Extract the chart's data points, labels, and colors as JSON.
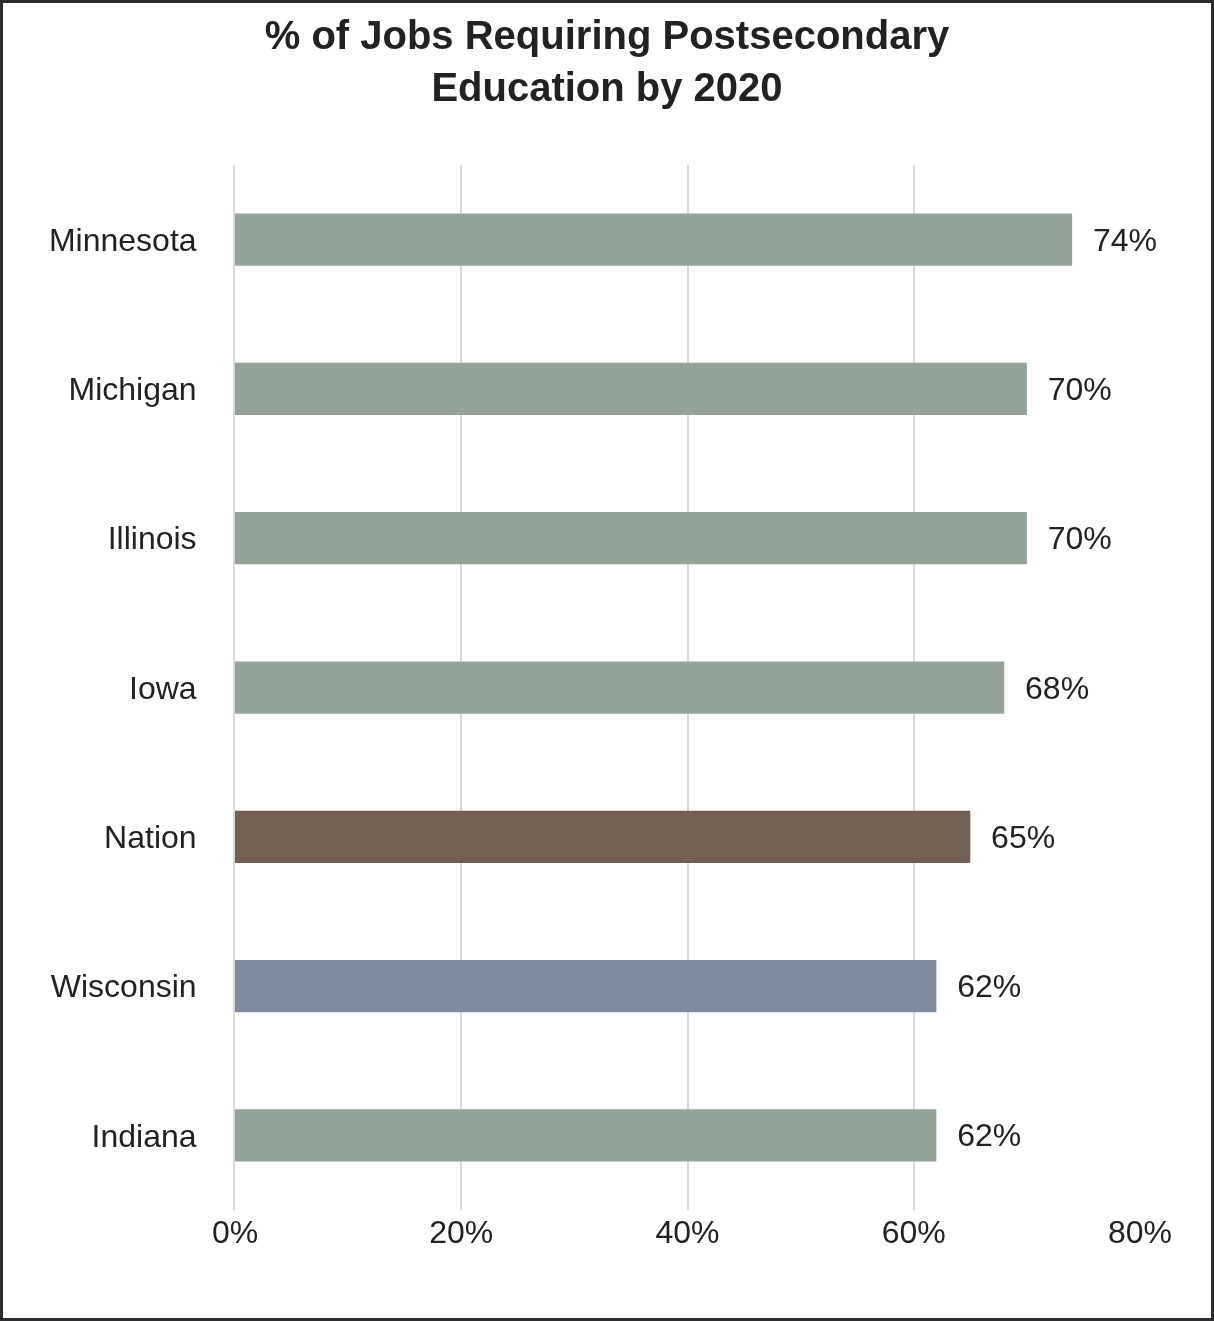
{
  "chart_data": {
    "type": "bar",
    "orientation": "horizontal",
    "title": "% of Jobs Requiring Postsecondary\nEducation by 2020",
    "categories": [
      "Minnesota",
      "Michigan",
      "Illinois",
      "Iowa",
      "Nation",
      "Wisconsin",
      "Indiana"
    ],
    "values": [
      74,
      70,
      70,
      68,
      65,
      62,
      62
    ],
    "value_labels": [
      "74%",
      "70%",
      "70%",
      "68%",
      "65%",
      "62%",
      "62%"
    ],
    "colors": [
      "#94a397",
      "#94a397",
      "#94a397",
      "#94a397",
      "#736055",
      "#818ba0",
      "#94a397"
    ],
    "xlim": [
      0,
      80
    ],
    "xticks": [
      {
        "value": 0,
        "label": "0%"
      },
      {
        "value": 20,
        "label": "20%"
      },
      {
        "value": 40,
        "label": "40%"
      },
      {
        "value": 60,
        "label": "60%"
      },
      {
        "value": 80,
        "label": "80%"
      }
    ],
    "grid": "x"
  }
}
